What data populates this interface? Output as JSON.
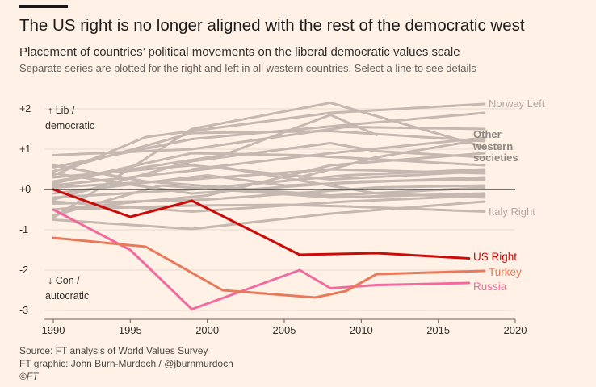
{
  "header": {
    "title": "The US right is no longer aligned with the rest of the democratic west",
    "subtitle": "Placement of countries’ political movements on the liberal democratic values scale",
    "instructions": "Separate series are plotted for the right and left in all western countries. Select a line to see details"
  },
  "footer": {
    "source": "Source: FT analysis of World Values Survey",
    "graphic": "FT graphic: John Burn-Murdoch / @jburnmurdoch",
    "copyright": "©FT"
  },
  "colors": {
    "background": "#FFF1E5",
    "other": "#C5B8B0",
    "us_right": "#CC0A0A",
    "turkey": "#E8795A",
    "russia": "#F26B9F",
    "zero_line": "#33302E"
  },
  "chart_data": {
    "type": "line",
    "x_ticks": [
      1990,
      1995,
      2000,
      2005,
      2010,
      2015,
      2020
    ],
    "y_ticks": [
      {
        "v": 2,
        "label": "+2"
      },
      {
        "v": 1,
        "label": "+1"
      },
      {
        "v": 0,
        "label": "+0"
      },
      {
        "v": -1,
        "label": "-1"
      },
      {
        "v": -2,
        "label": "-2"
      },
      {
        "v": -3,
        "label": "-3"
      }
    ],
    "xlim": [
      1990,
      2020
    ],
    "ylim": [
      -3,
      2
    ],
    "annotations": {
      "top_line1": "↑ Lib /",
      "top_line2": "democratic",
      "bottom_line1": "↓ Con /",
      "bottom_line2": "autocratic"
    },
    "highlighted": [
      {
        "name": "US Right",
        "color": "#CC0A0A",
        "x": [
          1990,
          1995,
          1999,
          2006,
          2011,
          2017
        ],
        "y": [
          0,
          -0.68,
          -0.28,
          -1.62,
          -1.58,
          -1.71
        ]
      },
      {
        "name": "Turkey",
        "color": "#E8795A",
        "x": [
          1990,
          1996,
          2001,
          2007,
          2009,
          2011,
          2018
        ],
        "y": [
          -1.2,
          -1.42,
          -2.5,
          -2.68,
          -2.52,
          -2.1,
          -2.02
        ]
      },
      {
        "name": "Russia",
        "color": "#F26B9F",
        "x": [
          1990,
          1995,
          1999,
          2006,
          2008,
          2011,
          2017
        ],
        "y": [
          -0.5,
          -1.5,
          -2.97,
          -2.0,
          -2.45,
          -2.37,
          -2.32
        ]
      }
    ],
    "background_series": [
      {
        "name": "Norway Left",
        "x": [
          1990,
          1996,
          2008,
          2018
        ],
        "y": [
          0.35,
          1.3,
          1.9,
          2.12
        ]
      },
      {
        "name": "Italy Right",
        "x": [
          1990,
          1999,
          2005,
          2009,
          2018
        ],
        "y": [
          -0.5,
          -0.4,
          -0.38,
          -0.42,
          -0.55
        ]
      },
      {
        "x": [
          1990,
          1999,
          2008,
          2018
        ],
        "y": [
          -0.7,
          1.5,
          2.15,
          1.05
        ]
      },
      {
        "x": [
          1990,
          1999,
          2009,
          2018
        ],
        "y": [
          0.55,
          1.25,
          1.6,
          1.9
        ]
      },
      {
        "x": [
          1990,
          1999,
          2009,
          2018
        ],
        "y": [
          0.85,
          1.0,
          1.55,
          1.5
        ]
      },
      {
        "x": [
          1990,
          2001,
          2008,
          2011
        ],
        "y": [
          0.2,
          0.85,
          1.85,
          1.35
        ]
      },
      {
        "x": [
          1990,
          1999,
          2008,
          2018
        ],
        "y": [
          0.45,
          1.4,
          1.45,
          1.2
        ]
      },
      {
        "x": [
          1990,
          1999,
          2006,
          2018
        ],
        "y": [
          0.15,
          0.9,
          0.85,
          0.6
        ]
      },
      {
        "x": [
          1990,
          1999,
          2008,
          2018
        ],
        "y": [
          0.05,
          0.25,
          0.5,
          0.4
        ]
      },
      {
        "x": [
          1990,
          2000,
          2005,
          2018
        ],
        "y": [
          -0.1,
          0.35,
          0.1,
          0.3
        ]
      },
      {
        "x": [
          1990,
          1999,
          2008,
          2018
        ],
        "y": [
          0.3,
          0.6,
          0.25,
          0.45
        ]
      },
      {
        "x": [
          1990,
          1999,
          2009,
          2018
        ],
        "y": [
          -0.2,
          0.0,
          0.35,
          0.5
        ]
      },
      {
        "x": [
          1990,
          2000,
          2008,
          2018
        ],
        "y": [
          -0.5,
          -0.15,
          0.6,
          0.9
        ]
      },
      {
        "x": [
          1990,
          1999,
          2009,
          2018
        ],
        "y": [
          -0.3,
          -0.55,
          -0.3,
          -0.15
        ]
      },
      {
        "x": [
          1990,
          2001,
          2011,
          2018
        ],
        "y": [
          0.1,
          0.55,
          -0.1,
          -0.2
        ]
      },
      {
        "x": [
          1990,
          1999,
          2008,
          2018
        ],
        "y": [
          -0.75,
          -0.98,
          -0.6,
          -0.3
        ]
      },
      {
        "x": [
          1990,
          1997,
          2008,
          2018
        ],
        "y": [
          -0.65,
          0.1,
          -0.2,
          -0.1
        ]
      },
      {
        "x": [
          1990,
          1999,
          2010,
          2018
        ],
        "y": [
          0.4,
          -0.1,
          0.2,
          0.25
        ]
      },
      {
        "x": [
          1990,
          2000,
          2011,
          2018
        ],
        "y": [
          -0.35,
          -0.25,
          0.05,
          0.1
        ]
      },
      {
        "x": [
          1990,
          1996,
          2008,
          2018
        ],
        "y": [
          0.6,
          0.2,
          -0.15,
          0.05
        ]
      },
      {
        "x": [
          1999,
          2008,
          2018
        ],
        "y": [
          0.5,
          0.9,
          1.28
        ]
      },
      {
        "x": [
          2006,
          2011,
          2018
        ],
        "y": [
          0.3,
          0.8,
          1.25
        ]
      },
      {
        "x": [
          1990,
          1999,
          2008,
          2011,
          2018
        ],
        "y": [
          -0.25,
          0.7,
          1.15,
          0.95,
          0.8
        ]
      }
    ],
    "labels": {
      "norway_left": "Norway Left",
      "other_line1": "Other",
      "other_line2": "western",
      "other_line3": "societies",
      "italy_right": "Italy Right",
      "us_right": "US Right",
      "turkey": "Turkey",
      "russia": "Russia"
    }
  }
}
